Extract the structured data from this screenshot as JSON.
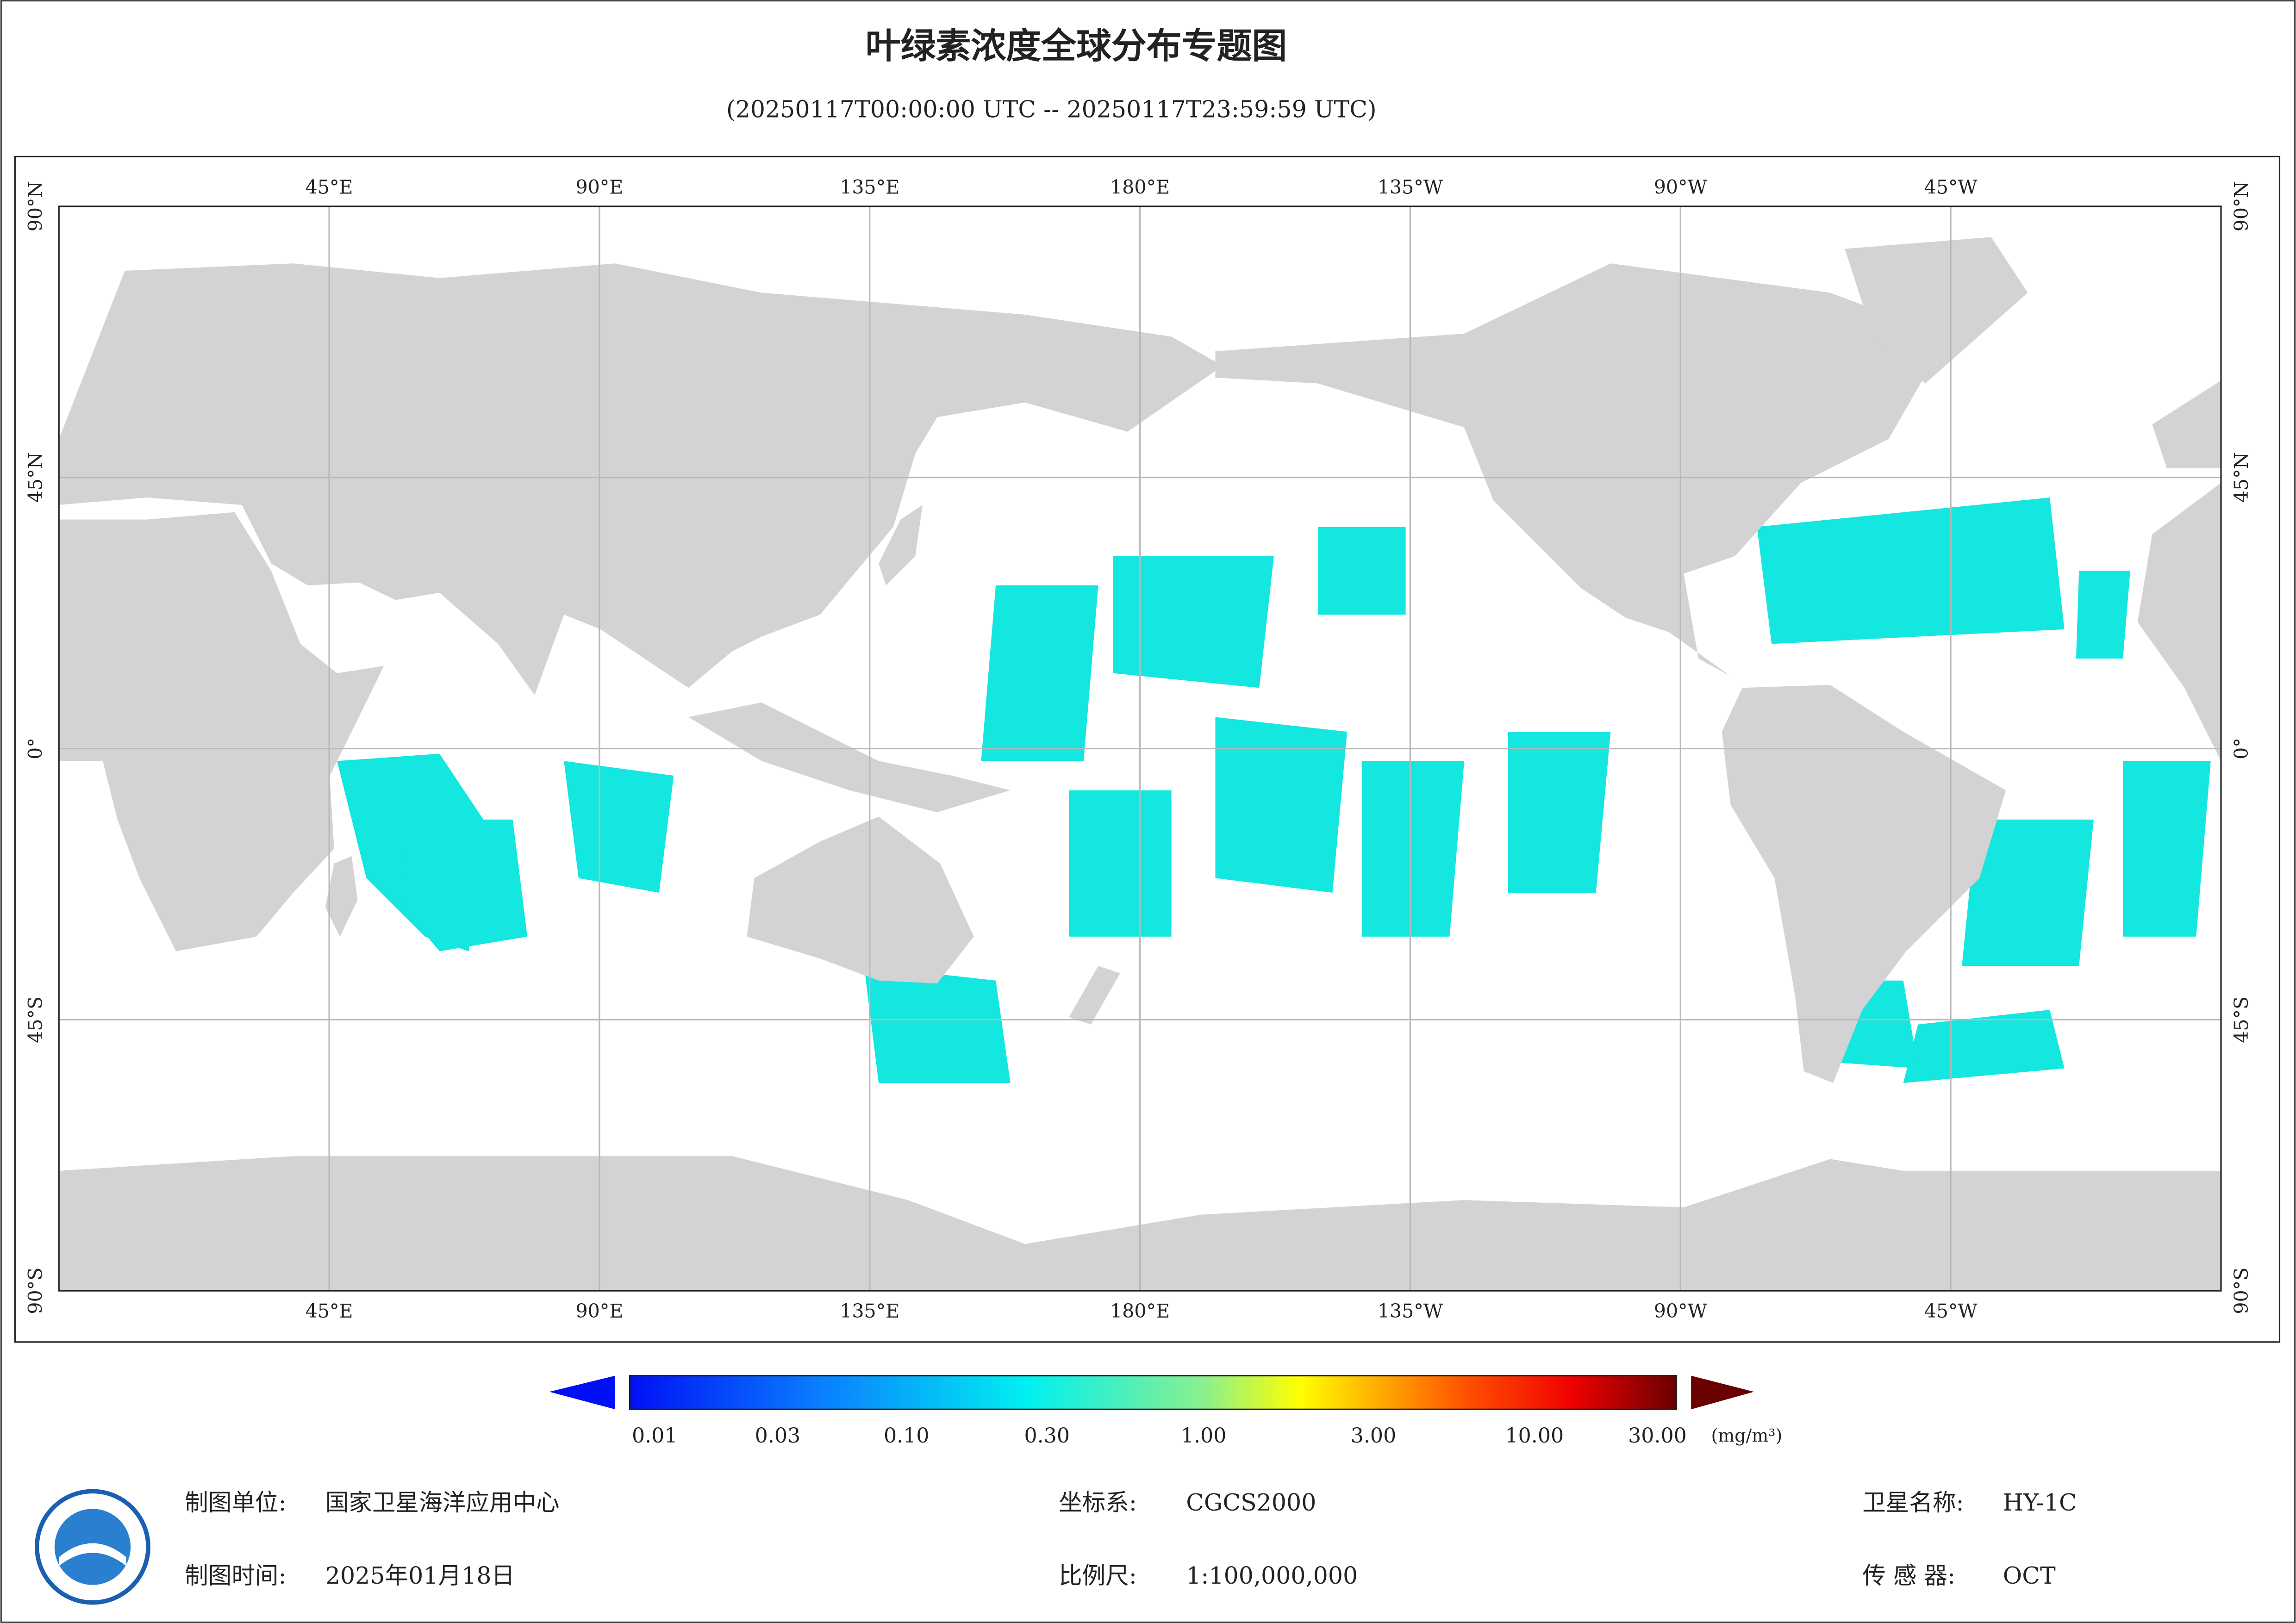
{
  "title": "叶绿素浓度全球分布专题图",
  "subtitle": "(20250117T00:00:00 UTC -- 20250117T23:59:59 UTC)",
  "map": {
    "lon_labels": [
      "45°E",
      "90°E",
      "135°E",
      "180°E",
      "135°W",
      "90°W",
      "45°W"
    ],
    "lat_labels": [
      "90°N",
      "45°N",
      "0°",
      "45°S",
      "90°S"
    ]
  },
  "colorbar": {
    "ticks": [
      "0.01",
      "0.03",
      "0.10",
      "0.30",
      "1.00",
      "3.00",
      "10.00",
      "30.00"
    ],
    "unit": "(mg/m³)"
  },
  "footer": {
    "unit_label": "制图单位:",
    "unit_value": "国家卫星海洋应用中心",
    "time_label": "制图时间:",
    "time_value": "2025年01月18日",
    "crs_label": "坐标系:",
    "crs_value": "CGCS2000",
    "scale_label": "比例尺:",
    "scale_value": "1:100,000,000",
    "satellite_label": "卫星名称:",
    "satellite_value": "HY-1C",
    "sensor_label": "传 感 器:",
    "sensor_value": "OCT"
  }
}
